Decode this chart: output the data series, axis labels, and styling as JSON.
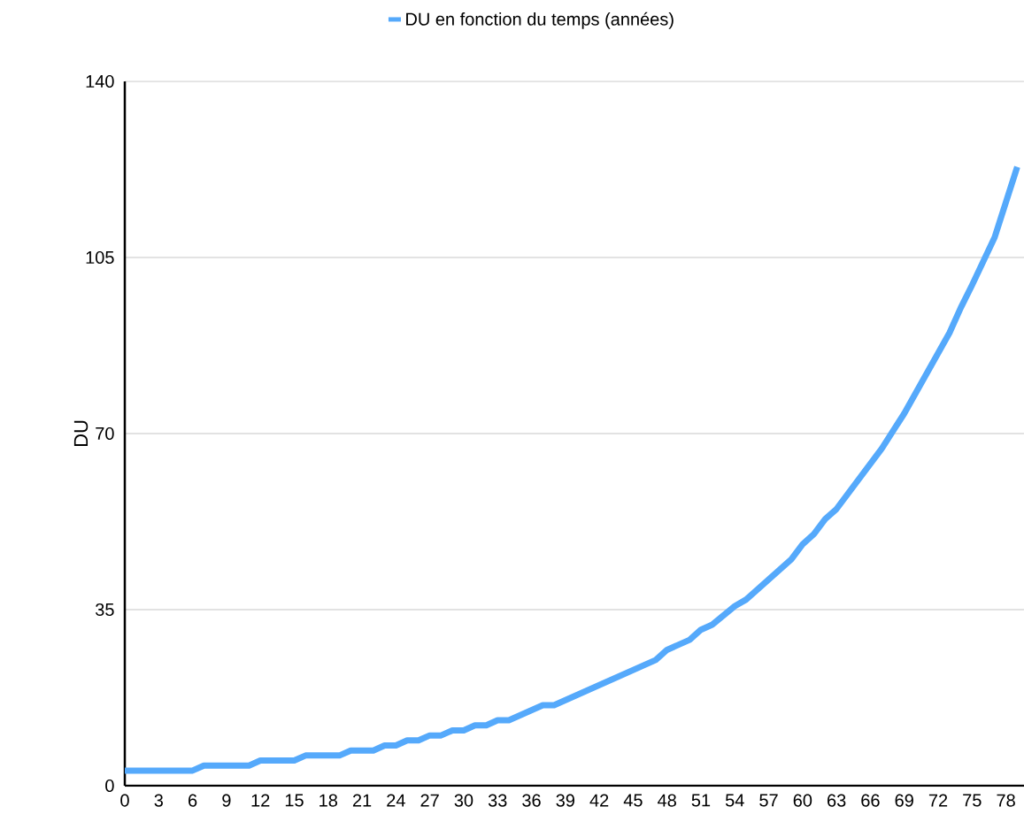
{
  "chart_data": {
    "type": "line",
    "ylabel": "DU",
    "xlim": [
      0,
      79.6
    ],
    "xticks": [
      0,
      3,
      6,
      9,
      12,
      15,
      18,
      21,
      24,
      27,
      30,
      33,
      36,
      39,
      42,
      45,
      48,
      51,
      54,
      57,
      60,
      63,
      66,
      69,
      72,
      75,
      78
    ],
    "ylim": [
      0,
      140
    ],
    "yticks": [
      0,
      35,
      70,
      105,
      140
    ],
    "grid": "y",
    "legend": "top",
    "marker": "none",
    "line_style": "solid",
    "series": [
      {
        "name": "DU en fonction du temps (années)",
        "color": "#55a9fb",
        "x": [
          0,
          6,
          7,
          11,
          12,
          15,
          16,
          19,
          20,
          22,
          23,
          24,
          25,
          26,
          27,
          28,
          29,
          30,
          31,
          32,
          33,
          34,
          37,
          38,
          47,
          48,
          50,
          51,
          52,
          54,
          55,
          59,
          60,
          61,
          62,
          63,
          67,
          68,
          69,
          73,
          74,
          75,
          77,
          79
        ],
        "values": [
          3,
          3,
          4,
          4,
          5,
          5,
          6,
          6,
          7,
          7,
          8,
          8,
          9,
          9,
          10,
          10,
          11,
          11,
          12,
          12,
          13,
          13,
          16,
          16,
          25,
          27,
          29,
          31,
          32,
          35.7,
          37,
          45,
          48,
          50,
          53,
          55,
          67,
          70.5,
          74,
          90,
          95,
          99.5,
          109,
          123
        ]
      }
    ]
  }
}
